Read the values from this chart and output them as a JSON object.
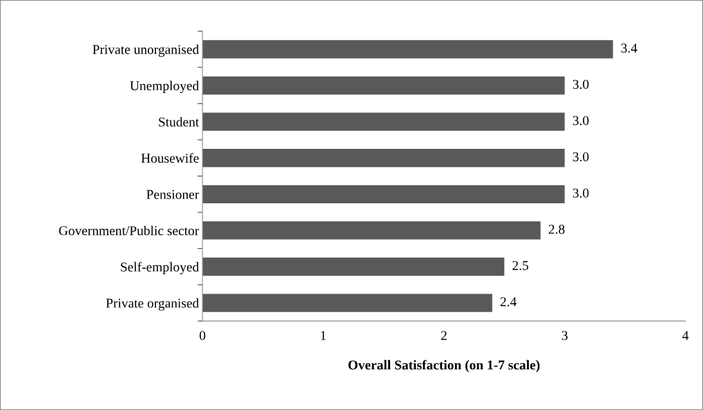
{
  "chart_data": {
    "type": "bar",
    "orientation": "horizontal",
    "xlabel": "Overall Satisfaction (on 1-7 scale)",
    "categories": [
      "Private unorganised",
      "Unemployed",
      "Student",
      "Housewife",
      "Pensioner",
      "Government/Public sector",
      "Self-employed",
      "Private organised"
    ],
    "values": [
      3.4,
      3.0,
      3.0,
      3.0,
      3.0,
      2.8,
      2.5,
      2.4
    ],
    "value_labels": [
      "3.4",
      "3.0",
      "3.0",
      "3.0",
      "3.0",
      "2.8",
      "2.5",
      "2.4"
    ],
    "color": "#595959",
    "xlim": [
      0,
      4
    ],
    "xticks": [
      0,
      1,
      2,
      3,
      4
    ],
    "grid": false,
    "legend": false
  }
}
